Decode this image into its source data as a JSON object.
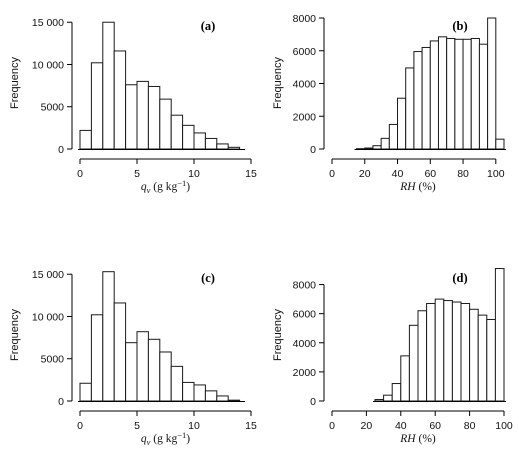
{
  "chart_data": [
    {
      "type": "bar",
      "panel_label": "(a)",
      "xlabel": {
        "symbol": "q",
        "subscript": "v",
        "unit": " (g kg",
        "exponent": "−1",
        "close": ")"
      },
      "ylabel": "Frequency",
      "xlim": [
        0,
        15
      ],
      "ylim": [
        0,
        15500
      ],
      "xticks": [
        "0",
        "5",
        "10",
        "15"
      ],
      "yticks": [
        "0",
        "5000",
        "10 000",
        "15 000"
      ],
      "ytick_values": [
        0,
        5000,
        10000,
        15000
      ],
      "xtick_values": [
        0,
        5,
        10,
        15
      ],
      "bin_start": 0,
      "bin_width": 1,
      "values": [
        2200,
        10200,
        15000,
        11600,
        7600,
        8000,
        7400,
        5900,
        4000,
        2800,
        1900,
        1250,
        600,
        200
      ]
    },
    {
      "type": "bar",
      "panel_label": "(b)",
      "xlabel": {
        "symbol": "RH",
        "subscript": "",
        "unit": " (%)",
        "exponent": "",
        "close": ""
      },
      "ylabel": "Frequency",
      "xlim": [
        0,
        105
      ],
      "ylim": [
        0,
        8000
      ],
      "xticks": [
        "0",
        "20",
        "40",
        "60",
        "80",
        "100"
      ],
      "yticks": [
        "0",
        "2000",
        "4000",
        "6000",
        "8000"
      ],
      "ytick_values": [
        0,
        2000,
        4000,
        6000,
        8000
      ],
      "xtick_values": [
        0,
        20,
        40,
        60,
        80,
        100
      ],
      "bin_start": 15,
      "bin_width": 5,
      "values": [
        20,
        60,
        200,
        650,
        1500,
        3100,
        4950,
        5950,
        6200,
        6600,
        6850,
        6750,
        6700,
        6700,
        6750,
        6400,
        8000,
        600
      ]
    },
    {
      "type": "bar",
      "panel_label": "(c)",
      "xlabel": {
        "symbol": "q",
        "subscript": "v",
        "unit": " (g kg",
        "exponent": "−1",
        "close": ")"
      },
      "ylabel": "Frequency",
      "xlim": [
        0,
        15
      ],
      "ylim": [
        0,
        15500
      ],
      "xticks": [
        "0",
        "5",
        "10",
        "15"
      ],
      "yticks": [
        "0",
        "5000",
        "10 000",
        "15 000"
      ],
      "ytick_values": [
        0,
        5000,
        10000,
        15000
      ],
      "xtick_values": [
        0,
        5,
        10,
        15
      ],
      "bin_start": 0,
      "bin_width": 1,
      "values": [
        2100,
        10200,
        15300,
        11600,
        6900,
        8200,
        7300,
        5800,
        4100,
        2200,
        1900,
        1200,
        600,
        100
      ]
    },
    {
      "type": "bar",
      "panel_label": "(d)",
      "xlabel": {
        "symbol": "RH",
        "subscript": "",
        "unit": " (%)",
        "exponent": "",
        "close": ""
      },
      "ylabel": "Frequency",
      "xlim": [
        0,
        100
      ],
      "ylim": [
        0,
        9000
      ],
      "xticks": [
        "0",
        "20",
        "40",
        "60",
        "80",
        "100"
      ],
      "yticks": [
        "0",
        "2000",
        "4000",
        "6000",
        "8000"
      ],
      "ytick_values": [
        0,
        2000,
        4000,
        6000,
        8000
      ],
      "xtick_values": [
        0,
        20,
        40,
        60,
        80,
        100
      ],
      "bin_start": 25,
      "bin_width": 5,
      "values": [
        100,
        400,
        1200,
        3100,
        5200,
        6200,
        6700,
        7000,
        6900,
        6800,
        6700,
        6300,
        5900,
        5600,
        9100
      ]
    }
  ]
}
